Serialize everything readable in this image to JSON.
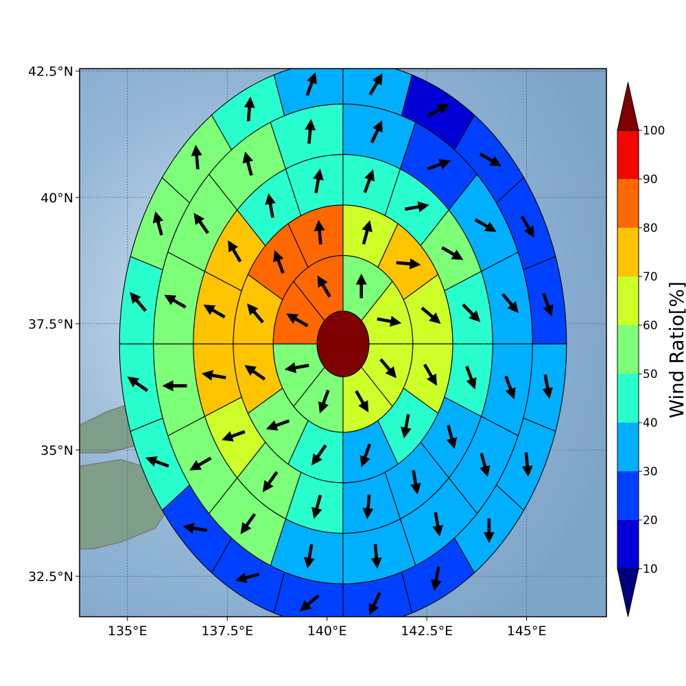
{
  "chart_data": {
    "type": "heatmap",
    "title": "",
    "projection": "polar-grid on geographic map",
    "lon_ticks": [
      {
        "value": 135.0,
        "label": "135°E"
      },
      {
        "value": 137.5,
        "label": "137.5°E"
      },
      {
        "value": 140.0,
        "label": "140°E"
      },
      {
        "value": 142.5,
        "label": "142.5°E"
      },
      {
        "value": 145.0,
        "label": "145°E"
      }
    ],
    "lat_ticks": [
      {
        "value": 32.5,
        "label": "32.5°N"
      },
      {
        "value": 35.0,
        "label": "35°N"
      },
      {
        "value": 37.5,
        "label": "37.5°N"
      },
      {
        "value": 40.0,
        "label": "40°N"
      },
      {
        "value": 42.5,
        "label": "42.5°N"
      }
    ],
    "xlim": [
      133.8,
      147.0
    ],
    "ylim": [
      31.7,
      42.55
    ],
    "grid": true,
    "center": {
      "lon": 140.4,
      "lat": 37.1,
      "value": 100
    },
    "ring_radii_deg": [
      0.65,
      1.75,
      2.75,
      3.75,
      4.75,
      5.6
    ],
    "sectors_per_ring": [
      8,
      12,
      16,
      16,
      20
    ],
    "ring_values": [
      [
        50,
        65,
        60,
        60,
        55,
        55,
        80,
        80
      ],
      [
        65,
        75,
        60,
        60,
        40,
        30,
        40,
        50,
        70,
        70,
        80,
        80
      ],
      [
        45,
        45,
        55,
        40,
        40,
        30,
        30,
        30,
        40,
        50,
        60,
        75,
        75,
        75,
        45,
        45
      ],
      [
        35,
        25,
        30,
        30,
        30,
        30,
        30,
        30,
        30,
        50,
        50,
        50,
        55,
        55,
        55,
        45
      ],
      [
        35,
        15,
        20,
        20,
        20,
        35,
        35,
        35,
        20,
        20,
        20,
        20,
        25,
        45,
        45,
        40,
        55,
        55,
        45,
        35
      ]
    ],
    "ring_wind_dir_deg": [
      [
        0,
        100,
        140,
        150,
        200,
        260,
        300,
        330
      ],
      [
        15,
        95,
        130,
        150,
        190,
        200,
        215,
        250,
        305,
        320,
        340,
        355
      ],
      [
        20,
        80,
        120,
        135,
        160,
        165,
        170,
        185,
        195,
        215,
        250,
        280,
        300,
        330,
        350,
        10
      ],
      [
        25,
        70,
        120,
        140,
        160,
        165,
        170,
        175,
        190,
        215,
        240,
        270,
        300,
        325,
        345,
        5
      ],
      [
        30,
        60,
        120,
        150,
        160,
        170,
        175,
        180,
        190,
        205,
        230,
        255,
        280,
        290,
        305,
        320,
        345,
        355,
        5,
        20
      ]
    ],
    "colorbar": {
      "label": "Wind Ratio[%]",
      "ticks": [
        10,
        20,
        30,
        40,
        50,
        60,
        70,
        80,
        90,
        100
      ],
      "levels": [
        {
          "from": 0,
          "to": 10,
          "color": "#00007f"
        },
        {
          "from": 10,
          "to": 20,
          "color": "#0000d6"
        },
        {
          "from": 20,
          "to": 30,
          "color": "#0040ff"
        },
        {
          "from": 30,
          "to": 40,
          "color": "#00b0ff"
        },
        {
          "from": 40,
          "to": 50,
          "color": "#29ffce"
        },
        {
          "from": 50,
          "to": 60,
          "color": "#7dff7a"
        },
        {
          "from": 60,
          "to": 70,
          "color": "#ceff29"
        },
        {
          "from": 70,
          "to": 80,
          "color": "#ffc400"
        },
        {
          "from": 80,
          "to": 90,
          "color": "#ff6800"
        },
        {
          "from": 90,
          "to": 100,
          "color": "#f10800"
        },
        {
          "from": 100,
          "to": 110,
          "color": "#7f0000"
        }
      ]
    }
  },
  "colors": {
    "ocean": "#8fb1d4",
    "land": "#7f9e8a",
    "coastline": "#808080",
    "gridline": "#4a5f78",
    "center_disk": "#7f0000"
  }
}
